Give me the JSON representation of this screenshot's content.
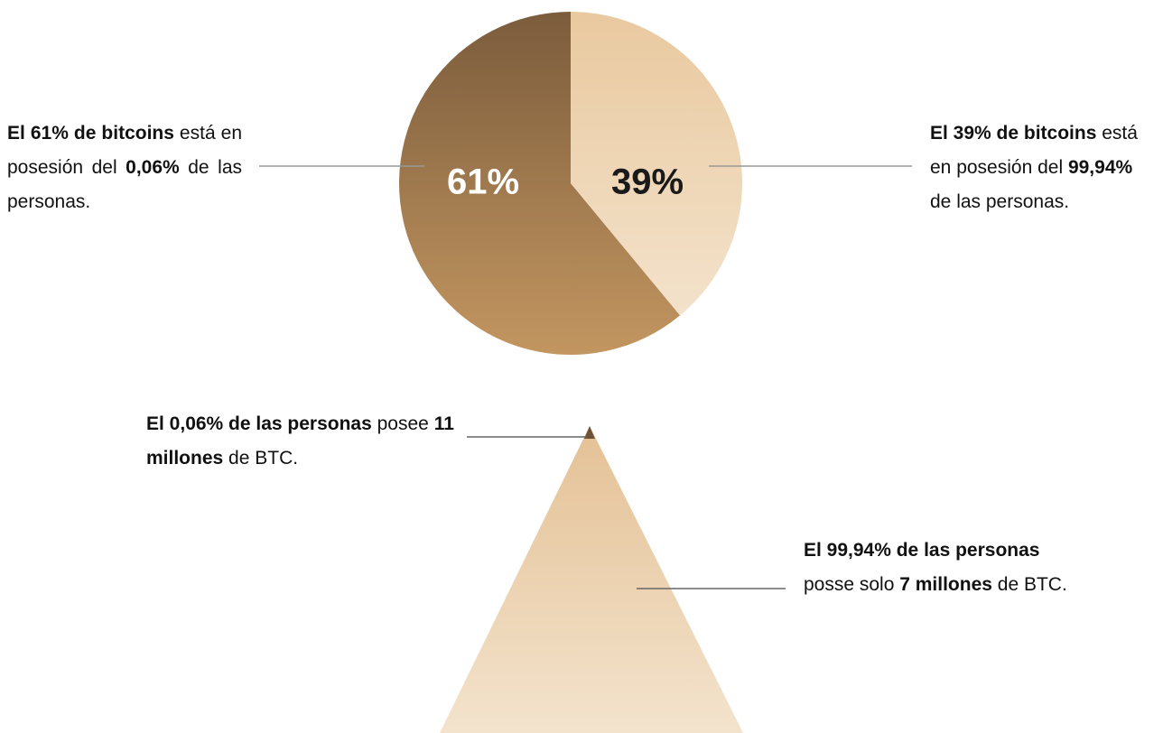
{
  "chart_data": {
    "type": "pie",
    "values": [
      61,
      39
    ],
    "value_labels": [
      "61%",
      "39%"
    ],
    "colors": [
      [
        "#7b5c3c",
        "#c39660"
      ],
      [
        "#e9c99f",
        "#f3e2cb"
      ]
    ],
    "label_colors": [
      "#ffffff",
      "#1a1a1a"
    ],
    "annotations": [
      {
        "runs": [
          {
            "text": "El 61% de bitcoins",
            "bold": true
          },
          {
            "text": " está en posesión del ",
            "bold": false
          },
          {
            "text": "0,06%",
            "bold": true
          },
          {
            "text": " de las personas.",
            "bold": false
          }
        ]
      },
      {
        "runs": [
          {
            "text": "El 39% de bitcoins",
            "bold": true
          },
          {
            "text": " está en posesión del ",
            "bold": false
          },
          {
            "text": "99,94%",
            "bold": true
          },
          {
            "text": " de las personas.",
            "bold": false
          }
        ]
      },
      {
        "runs": [
          {
            "text": "El 0,06% de las personas",
            "bold": true
          },
          {
            "text": " posee ",
            "bold": false
          },
          {
            "text": "11 millones",
            "bold": true
          },
          {
            "text": " de BTC.",
            "bold": false
          }
        ]
      },
      {
        "runs": [
          {
            "text": "El 99,94% de las personas",
            "bold": true
          },
          {
            "text": " posse solo ",
            "bold": false
          },
          {
            "text": "7 millones",
            "bold": true
          },
          {
            "text": " de BTC.",
            "bold": false
          }
        ]
      }
    ]
  }
}
